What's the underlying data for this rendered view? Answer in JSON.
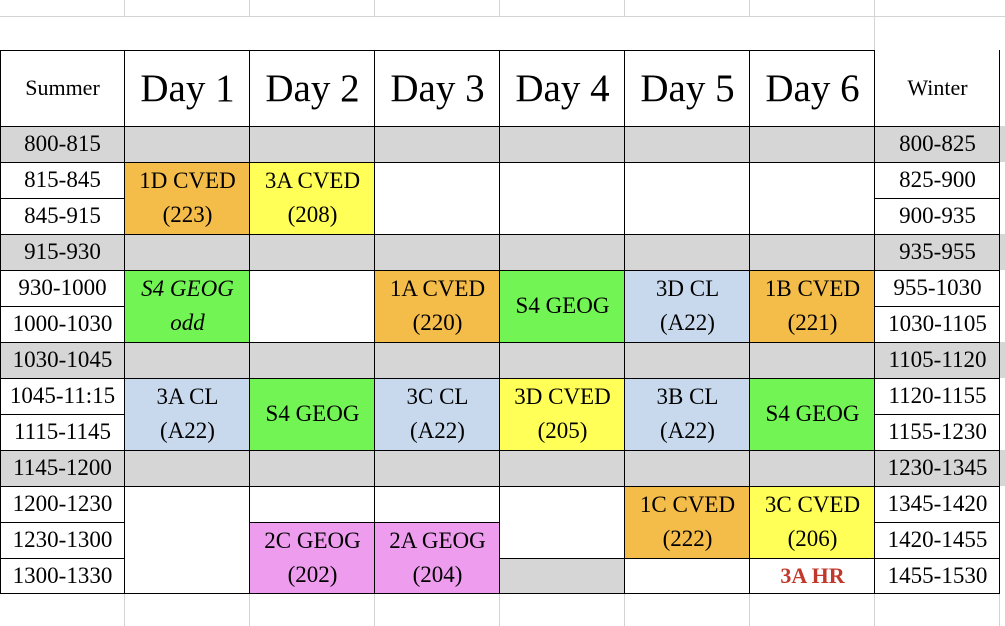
{
  "colors": {
    "gray": "#d6d6d6",
    "orange": "#f4bc48",
    "yellow": "#ffff57",
    "green": "#72f454",
    "blue": "#c8d9ee",
    "pink": "#ee9cee",
    "red_text": "#c0392b"
  },
  "header": {
    "summer": "Summer",
    "winter": "Winter",
    "days": [
      "Day 1",
      "Day 2",
      "Day 3",
      "Day 4",
      "Day 5",
      "Day 6"
    ]
  },
  "rows": [
    {
      "summer": "800-815",
      "winter": "800-825",
      "break": true
    },
    {
      "summer": "815-845",
      "winter": "825-900",
      "break": false
    },
    {
      "summer": "845-915",
      "winter": "900-935",
      "break": false
    },
    {
      "summer": "915-930",
      "winter": "935-955",
      "break": true
    },
    {
      "summer": "930-1000",
      "winter": "955-1030",
      "break": false
    },
    {
      "summer": "1000-1030",
      "winter": "1030-1105",
      "break": false
    },
    {
      "summer": "1030-1045",
      "winter": "1105-1120",
      "break": true
    },
    {
      "summer": "1045-11:15",
      "winter": "1120-1155",
      "break": false
    },
    {
      "summer": "1115-1145",
      "winter": "1155-1230",
      "break": false
    },
    {
      "summer": "1145-1200",
      "winter": "1230-1345",
      "break": true
    },
    {
      "summer": "1200-1230",
      "winter": "1345-1420",
      "break": false
    },
    {
      "summer": "1230-1300",
      "winter": "1420-1455",
      "break": false
    },
    {
      "summer": "1300-1330",
      "winter": "1455-1530",
      "break": false
    }
  ],
  "events": {
    "d1_cved": {
      "line1": "1D CVED",
      "line2": "(223)"
    },
    "d2_cved": {
      "line1": "3A CVED",
      "line2": "(208)"
    },
    "d1_geog": {
      "line1": "S4 GEOG",
      "line2": "odd"
    },
    "d3_cved": {
      "line1": "1A CVED",
      "line2": "(220)"
    },
    "d4_geog": {
      "line1": "S4 GEOG"
    },
    "d5_cl": {
      "line1": "3D CL",
      "line2": "(A22)"
    },
    "d6_cved": {
      "line1": "1B CVED",
      "line2": "(221)"
    },
    "d1_cl": {
      "line1": "3A CL",
      "line2": "(A22)"
    },
    "d2_geog": {
      "line1": "S4 GEOG"
    },
    "d3_cl": {
      "line1": "3C CL",
      "line2": "(A22)"
    },
    "d4_cved": {
      "line1": "3D CVED",
      "line2": "(205)"
    },
    "d5_cl2": {
      "line1": "3B CL",
      "line2": "(A22)"
    },
    "d6_geog": {
      "line1": "S4 GEOG"
    },
    "d5_cved": {
      "line1": "1C CVED",
      "line2": "(222)"
    },
    "d6_cved2": {
      "line1": "3C CVED",
      "line2": "(206)"
    },
    "d2_geog2": {
      "line1": "2C GEOG",
      "line2": "(202)"
    },
    "d3_geog": {
      "line1": "2A GEOG",
      "line2": "(204)"
    },
    "d6_hr": {
      "line1": "3A HR"
    }
  }
}
